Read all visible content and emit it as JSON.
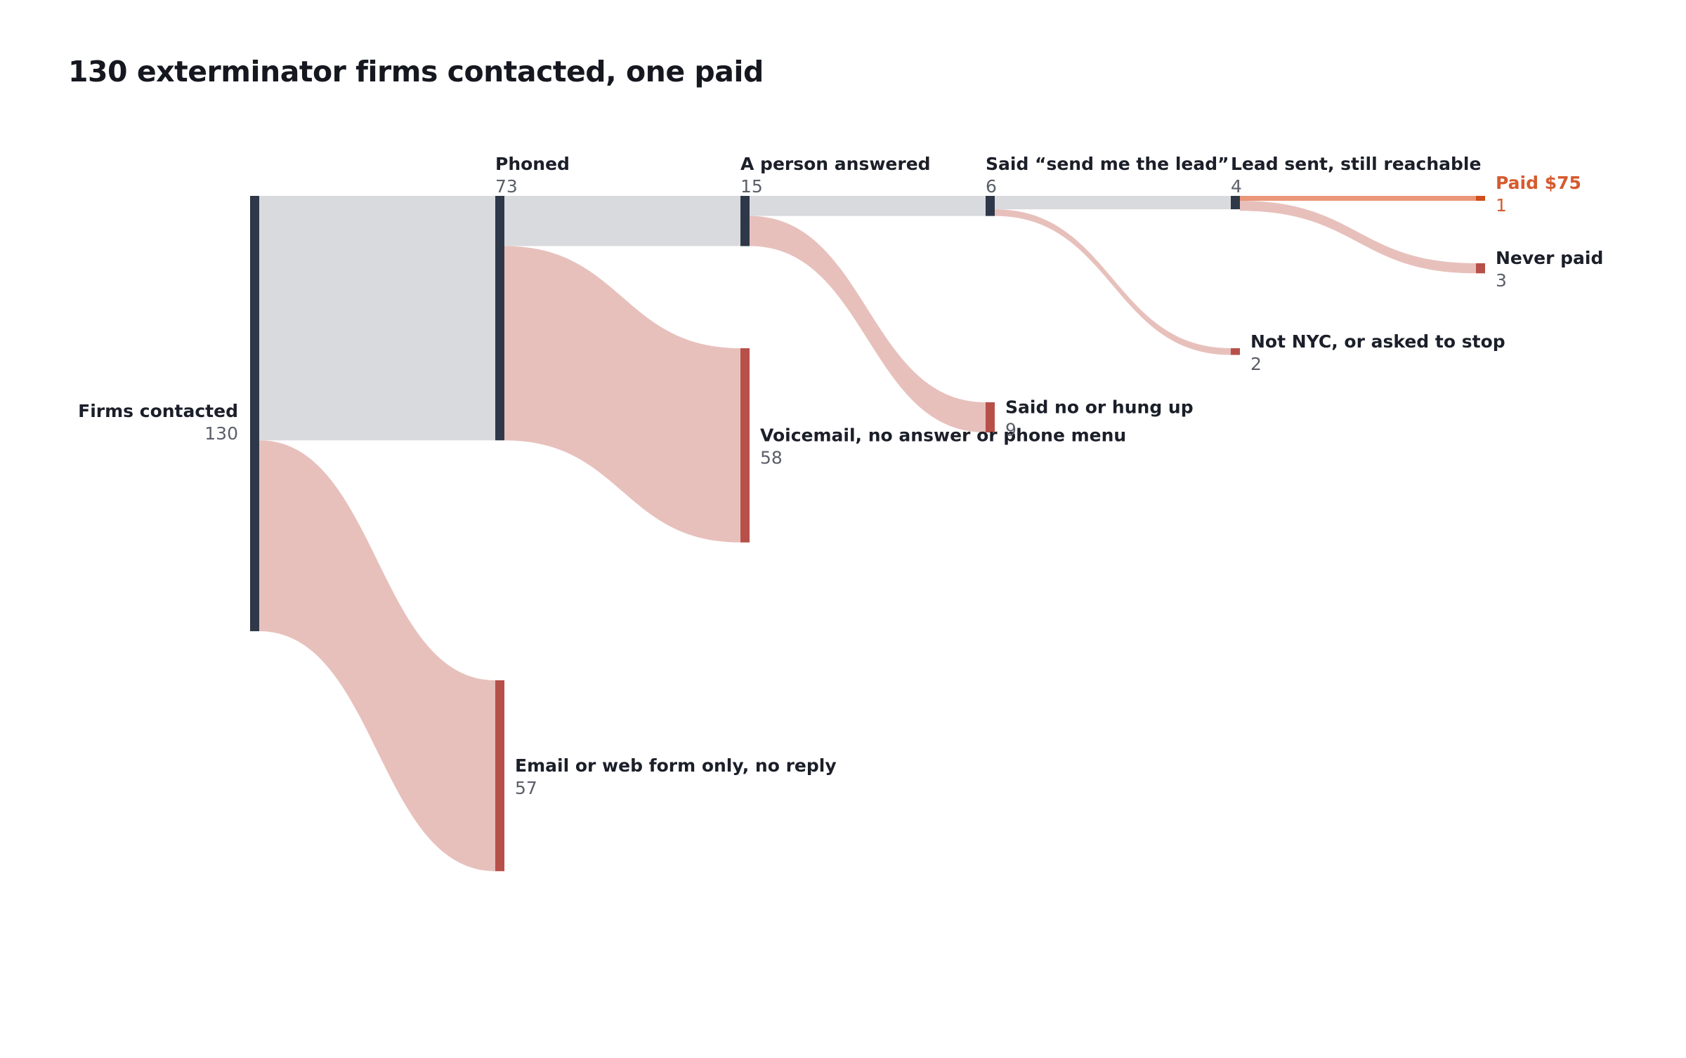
{
  "title": "130 exterminator firms contacted, one paid",
  "colors": {
    "stage_bar": "#2f3848",
    "outcome_bar": "#b8504a",
    "paid_bar": "#d04d1e",
    "flow_continue": "#d9dade",
    "flow_drop": "#e7c0bc",
    "flow_paid": "#ec9679"
  },
  "chart_data": {
    "type": "sankey",
    "title": "130 exterminator firms contacted, one paid",
    "nodes": [
      {
        "id": "firms",
        "name": "Firms contacted",
        "value": 130,
        "kind": "stage"
      },
      {
        "id": "phoned",
        "name": "Phoned",
        "value": 73,
        "kind": "stage"
      },
      {
        "id": "email",
        "name": "Email or web form only, no reply",
        "value": 57,
        "kind": "outcome"
      },
      {
        "id": "answered",
        "name": "A person answered",
        "value": 15,
        "kind": "stage"
      },
      {
        "id": "voicemail",
        "name": "Voicemail, no answer or phone menu",
        "value": 58,
        "kind": "outcome"
      },
      {
        "id": "send",
        "name": "Said “send me the lead”",
        "value": 6,
        "kind": "stage"
      },
      {
        "id": "saidno",
        "name": "Said no or hung up",
        "value": 9,
        "kind": "outcome"
      },
      {
        "id": "sent",
        "name": "Lead sent, still reachable",
        "value": 4,
        "kind": "stage"
      },
      {
        "id": "notnyc",
        "name": "Not NYC, or asked to stop",
        "value": 2,
        "kind": "outcome"
      },
      {
        "id": "paid",
        "name": "Paid $75",
        "value": 1,
        "kind": "paid"
      },
      {
        "id": "never",
        "name": "Never paid",
        "value": 3,
        "kind": "outcome"
      }
    ],
    "links": [
      {
        "source": "firms",
        "target": "phoned",
        "value": 73,
        "kind": "continue"
      },
      {
        "source": "firms",
        "target": "email",
        "value": 57,
        "kind": "drop"
      },
      {
        "source": "phoned",
        "target": "answered",
        "value": 15,
        "kind": "continue"
      },
      {
        "source": "phoned",
        "target": "voicemail",
        "value": 58,
        "kind": "drop"
      },
      {
        "source": "answered",
        "target": "send",
        "value": 6,
        "kind": "continue"
      },
      {
        "source": "answered",
        "target": "saidno",
        "value": 9,
        "kind": "drop"
      },
      {
        "source": "send",
        "target": "sent",
        "value": 4,
        "kind": "continue"
      },
      {
        "source": "send",
        "target": "notnyc",
        "value": 2,
        "kind": "drop"
      },
      {
        "source": "sent",
        "target": "paid",
        "value": 1,
        "kind": "paid"
      },
      {
        "source": "sent",
        "target": "never",
        "value": 3,
        "kind": "drop"
      }
    ]
  }
}
